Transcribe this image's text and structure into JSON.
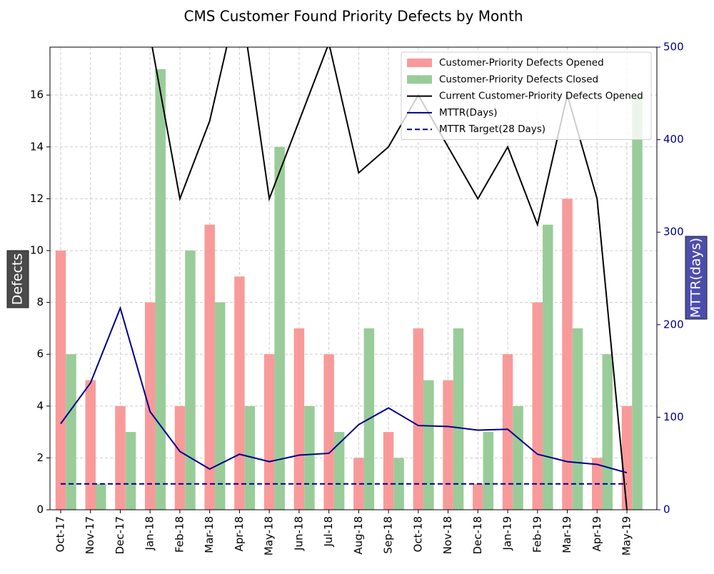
{
  "chart_data": {
    "type": "bar_line",
    "title": "CMS Customer Found Priority Defects by Month",
    "y_label": "Defects",
    "y2_label": "MTTR(days)",
    "categories": [
      "Oct-17",
      "Nov-17",
      "Dec-17",
      "Jan-18",
      "Feb-18",
      "Mar-18",
      "Apr-18",
      "May-18",
      "Jun-18",
      "Jul-18",
      "Aug-18",
      "Sep-18",
      "Oct-18",
      "Nov-18",
      "Dec-18",
      "Jan-19",
      "Feb-19",
      "Mar-19",
      "Apr-19",
      "May-19"
    ],
    "series": [
      {
        "name": "Customer-Priority Defects Opened",
        "type": "bar",
        "color": "#f99a9a",
        "values": [
          10,
          5,
          4,
          8,
          4,
          11,
          9,
          6,
          7,
          6,
          2,
          3,
          7,
          5,
          1,
          6,
          8,
          12,
          2,
          4
        ]
      },
      {
        "name": "Customer-Priority Defects Closed",
        "type": "bar",
        "color": "#99cc99",
        "values": [
          6,
          1,
          3,
          17,
          10,
          8,
          4,
          14,
          4,
          3,
          7,
          2,
          5,
          7,
          3,
          4,
          11,
          7,
          6,
          16
        ]
      },
      {
        "name": "Current Customer-Priority Defects Opened",
        "type": "line",
        "color": "#000000",
        "values": [
          null,
          null,
          null,
          18.3,
          12,
          15,
          20,
          12,
          15,
          18,
          13,
          14,
          16,
          14,
          12,
          14,
          11,
          16,
          12,
          0
        ]
      },
      {
        "name": "MTTR(Days)",
        "type": "line",
        "axis": "y2",
        "color": "#00008b",
        "values": [
          93,
          137,
          218,
          106,
          63,
          44,
          60,
          52,
          59,
          61,
          92,
          110,
          91,
          90,
          86,
          87,
          60,
          52,
          49,
          40
        ]
      },
      {
        "name": "MTTR Target(28 Days)",
        "type": "line",
        "axis": "y2",
        "color": "#00008b",
        "linestyle": "dashed",
        "values": [
          28,
          28,
          28,
          28,
          28,
          28,
          28,
          28,
          28,
          28,
          28,
          28,
          28,
          28,
          28,
          28,
          28,
          28,
          28,
          28
        ]
      }
    ],
    "ylim": [
      0,
      17.85
    ],
    "yticks": [
      0,
      2,
      4,
      6,
      8,
      10,
      12,
      14,
      16
    ],
    "y2lim": [
      0,
      500
    ],
    "y2ticks": [
      0,
      100,
      200,
      300,
      400,
      500
    ],
    "grid": true,
    "legend": "upper right"
  }
}
